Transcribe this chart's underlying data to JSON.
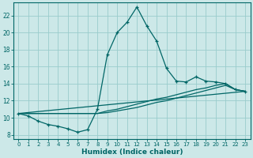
{
  "title": "",
  "xlabel": "Humidex (Indice chaleur)",
  "ylabel": "",
  "background_color": "#cce8e8",
  "grid_color": "#99cccc",
  "line_color": "#006666",
  "xlim": [
    -0.5,
    23.5
  ],
  "ylim": [
    7.5,
    23.5
  ],
  "xticks": [
    0,
    1,
    2,
    3,
    4,
    5,
    6,
    7,
    8,
    9,
    10,
    11,
    12,
    13,
    14,
    15,
    16,
    17,
    18,
    19,
    20,
    21,
    22,
    23
  ],
  "yticks": [
    8,
    10,
    12,
    14,
    16,
    18,
    20,
    22
  ],
  "curve1_x": [
    0,
    1,
    2,
    3,
    4,
    5,
    6,
    7,
    8,
    9,
    10,
    11,
    12,
    13,
    14,
    15,
    16,
    17,
    18,
    19,
    20,
    21,
    22,
    23
  ],
  "curve1_y": [
    10.5,
    10.2,
    9.6,
    9.2,
    9.0,
    8.7,
    8.3,
    8.6,
    11.0,
    17.4,
    20.0,
    21.2,
    23.0,
    20.8,
    19.0,
    15.8,
    14.3,
    14.2,
    14.8,
    14.3,
    14.2,
    14.0,
    13.3,
    13.1
  ],
  "curve2_x": [
    0,
    8,
    9,
    10,
    11,
    12,
    13,
    14,
    15,
    16,
    17,
    18,
    19,
    20,
    21,
    22,
    23
  ],
  "curve2_y": [
    10.5,
    10.5,
    10.8,
    11.0,
    11.3,
    11.6,
    11.9,
    12.2,
    12.4,
    12.7,
    13.0,
    13.3,
    13.5,
    13.8,
    14.0,
    13.3,
    13.1
  ],
  "curve3_x": [
    0,
    8,
    9,
    10,
    11,
    12,
    13,
    14,
    15,
    16,
    17,
    18,
    19,
    20,
    21,
    22,
    23
  ],
  "curve3_y": [
    10.5,
    10.5,
    10.6,
    10.8,
    11.0,
    11.2,
    11.5,
    11.8,
    12.0,
    12.3,
    12.6,
    12.9,
    13.2,
    13.5,
    13.8,
    13.3,
    13.1
  ],
  "curve4_x": [
    0,
    23
  ],
  "curve4_y": [
    10.5,
    13.1
  ]
}
